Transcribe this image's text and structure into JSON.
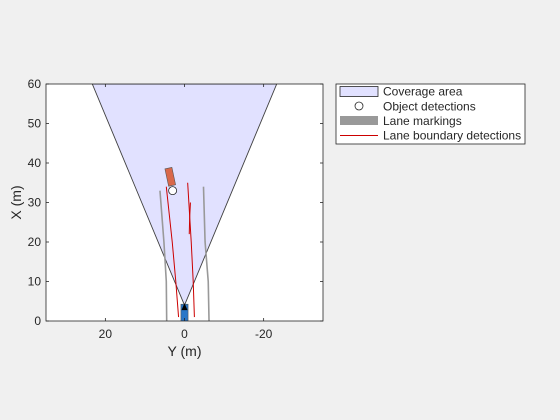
{
  "chart_data": {
    "type": "scatter",
    "xlabel": "Y (m)",
    "ylabel": "X (m)",
    "xlim": [
      35,
      -35
    ],
    "ylim": [
      0,
      60
    ],
    "x_axis_direction": "reversed",
    "xticks": [
      20,
      0,
      -20
    ],
    "xtick_labels": [
      "20",
      "0",
      "-20"
    ],
    "yticks": [
      0,
      10,
      20,
      30,
      40,
      50,
      60
    ],
    "ytick_labels": [
      "0",
      "10",
      "20",
      "30",
      "40",
      "50",
      "60"
    ],
    "grid": false,
    "legend_placement": "outside-top-right",
    "legend": [
      {
        "label": "Coverage area",
        "symbol": "patch",
        "color": "#e1e1ff"
      },
      {
        "label": "Object detections",
        "symbol": "circle",
        "color": "#ffffff"
      },
      {
        "label": "Lane markings",
        "symbol": "thick-line",
        "color": "#999999"
      },
      {
        "label": "Lane boundary detections",
        "symbol": "line",
        "color": "#cc0000"
      }
    ],
    "coverage_area": {
      "color": "#e1e1ff",
      "edge_color": "#404040",
      "vertices": [
        [
          0,
          4.0
        ],
        [
          23.3,
          60
        ],
        [
          -23.3,
          60
        ]
      ]
    },
    "lane_markings": {
      "color": "#999999",
      "lines": [
        [
          [
            4.5,
            0
          ],
          [
            4.6,
            10
          ],
          [
            5.2,
            20
          ],
          [
            6.2,
            33
          ]
        ],
        [
          [
            -6.2,
            0
          ],
          [
            -6.0,
            10
          ],
          [
            -5.2,
            20
          ],
          [
            -4.8,
            34
          ]
        ]
      ]
    },
    "lane_boundary_detections": {
      "color": "#cc0000",
      "lines": [
        [
          [
            1.5,
            1
          ],
          [
            2.2,
            10
          ],
          [
            3.1,
            20
          ],
          [
            4.6,
            34
          ]
        ],
        [
          [
            -2.5,
            1
          ],
          [
            -2.2,
            10
          ],
          [
            -1.7,
            20
          ],
          [
            -0.8,
            35
          ]
        ],
        [
          [
            -1.5,
            30
          ],
          [
            -1.3,
            26
          ],
          [
            -1.2,
            22
          ]
        ]
      ]
    },
    "object_detections": [
      {
        "y": 3.0,
        "x": 33.0
      }
    ],
    "vehicles": [
      {
        "name": "ego",
        "y": 0,
        "x": 2.0,
        "length": 4.5,
        "width": 1.8,
        "heading_deg": 0,
        "color": "#2a77c8"
      },
      {
        "name": "target",
        "y": 3.6,
        "x": 36.5,
        "length": 4.5,
        "width": 1.8,
        "heading_deg": -12,
        "color": "#d9684a"
      }
    ],
    "ego_marker": {
      "y": 0,
      "x": 3.5,
      "color": "#000000"
    }
  }
}
